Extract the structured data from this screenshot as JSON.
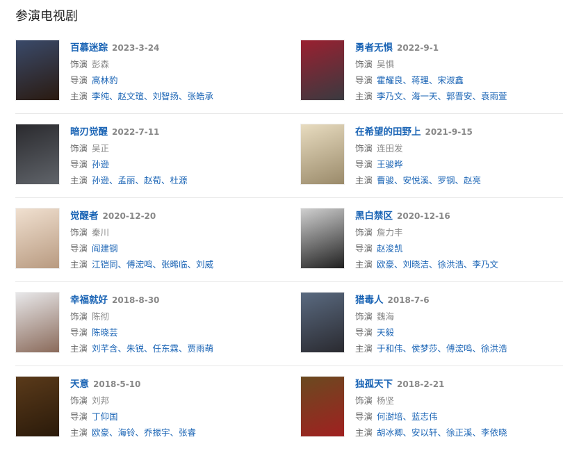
{
  "heading": "参演电视剧",
  "link_color": "#1a64b5",
  "labels": {
    "role": "饰演",
    "director": "导演",
    "cast": "主演"
  },
  "dramas": [
    {
      "title": "百慕迷踪",
      "date": "2023-3-24",
      "role": "彭森",
      "director": "高林豹",
      "cast": "李纯、赵文瑄、刘智扬、张皓承",
      "poster_colors": [
        "#3a4a6a",
        "#2a1a10"
      ]
    },
    {
      "title": "勇者无惧",
      "date": "2022-9-1",
      "role": "吴惧",
      "director": "霍耀良、蒋理、宋淑鑫",
      "cast": "李乃文、海一天、郭晋安、袁雨萱",
      "poster_colors": [
        "#9a2030",
        "#3a3a40"
      ]
    },
    {
      "title": "暗刃觉醒",
      "date": "2022-7-11",
      "role": "吴正",
      "director": "孙逊",
      "cast": "孙逊、孟丽、赵荀、杜源",
      "poster_colors": [
        "#2a2a2e",
        "#60646a"
      ]
    },
    {
      "title": "在希望的田野上",
      "date": "2021-9-15",
      "role": "连田发",
      "director": "王骏晔",
      "cast": "曹骏、安悦溪、罗钢、赵亮",
      "poster_colors": [
        "#e8dcc0",
        "#9a8a6a"
      ]
    },
    {
      "title": "觉醒者",
      "date": "2020-12-20",
      "role": "秦川",
      "director": "阎建钢",
      "cast": "江铠同、傅浤鸣、张晞临、刘威",
      "poster_colors": [
        "#f0e0d0",
        "#b89a80"
      ]
    },
    {
      "title": "黑白禁区",
      "date": "2020-12-16",
      "role": "詹力丰",
      "director": "赵浚凯",
      "cast": "欧豪、刘晓洁、徐洪浩、李乃文",
      "poster_colors": [
        "#d0d0d0",
        "#202020"
      ]
    },
    {
      "title": "幸福就好",
      "date": "2018-8-30",
      "role": "陈彻",
      "director": "陈晓芸",
      "cast": "刘芊含、朱锐、任东霖、贾雨萌",
      "poster_colors": [
        "#e8e8ea",
        "#8a6a5a"
      ]
    },
    {
      "title": "猎毒人",
      "date": "2018-7-6",
      "role": "魏海",
      "director": "天毅",
      "cast": "于和伟、侯梦莎、傅浤鸣、徐洪浩",
      "poster_colors": [
        "#5a6a80",
        "#2a2a30"
      ]
    },
    {
      "title": "天意",
      "date": "2018-5-10",
      "role": "刘邦",
      "director": "丁仰国",
      "cast": "欧豪、海铃、乔振宇、张睿",
      "poster_colors": [
        "#5a3a1a",
        "#2a1a0a"
      ]
    },
    {
      "title": "独孤天下",
      "date": "2018-2-21",
      "role": "杨坚",
      "director": "何澍培、蓝志伟",
      "cast": "胡冰卿、安以轩、徐正溪、李依晓",
      "poster_colors": [
        "#6a4a20",
        "#a02020"
      ]
    }
  ]
}
